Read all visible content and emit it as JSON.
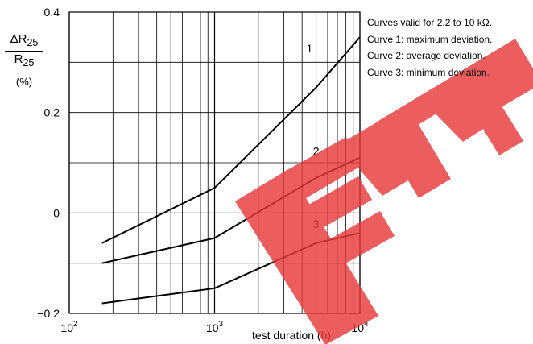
{
  "chart_data": {
    "type": "line",
    "title": "",
    "xlabel": "test duration (h)",
    "ylabel": {
      "numerator": "ΔR",
      "numerator_sub": "25",
      "denominator": "R",
      "denominator_sub": "25",
      "unit": "(%)"
    },
    "x_scale": "log",
    "xlim": [
      100,
      10000
    ],
    "ylim": [
      -0.2,
      0.4
    ],
    "grid": true,
    "x_ticks": [
      {
        "base": "10",
        "exp": "2",
        "value": 100
      },
      {
        "base": "10",
        "exp": "3",
        "value": 1000
      },
      {
        "base": "10",
        "exp": "4",
        "value": 10000
      }
    ],
    "y_ticks": [
      {
        "label": "−0.2",
        "value": -0.2
      },
      {
        "label": "0",
        "value": 0
      },
      {
        "label": "0.2",
        "value": 0.2
      },
      {
        "label": "0.4",
        "value": 0.4
      }
    ],
    "y_gridlines": [
      -0.2,
      -0.1,
      0,
      0.1,
      0.2,
      0.3,
      0.4
    ],
    "series": [
      {
        "name": "1",
        "x": [
          168,
          1000,
          5000,
          10000
        ],
        "values": [
          -0.06,
          0.05,
          0.25,
          0.35
        ],
        "label_at": [
          4500,
          0.32
        ]
      },
      {
        "name": "2",
        "x": [
          168,
          1000,
          5000,
          10000
        ],
        "values": [
          -0.1,
          -0.05,
          0.07,
          0.11
        ],
        "label_at": [
          5000,
          0.115
        ]
      },
      {
        "name": "3",
        "x": [
          168,
          1000,
          5000,
          10000
        ],
        "values": [
          -0.18,
          -0.15,
          -0.06,
          -0.04
        ],
        "label_at": [
          5000,
          -0.03
        ]
      }
    ],
    "colors": {
      "line": "#000000",
      "grid": "#000000",
      "watermark": "#e83b3b"
    }
  },
  "notes": [
    "Curves valid for 2.2 to 10 kΩ.",
    "Curve 1: maximum deviation.",
    "Curve 2: average deviation.",
    "Curve 3: minimum deviation."
  ],
  "watermark": {
    "text": "EEPW",
    "color": "#e83b3b"
  }
}
